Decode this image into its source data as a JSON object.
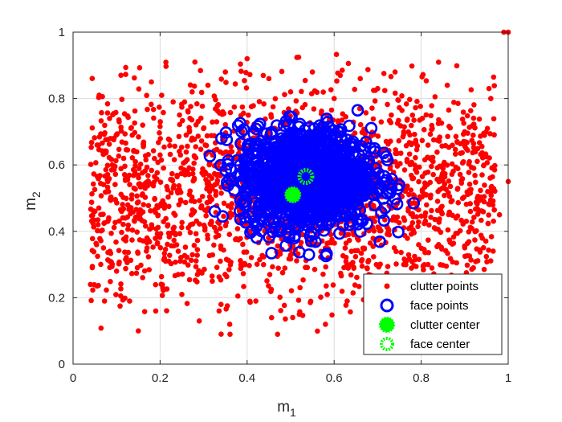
{
  "chart_data": {
    "type": "scatter",
    "title": "",
    "xlabel": "m",
    "xlabel_sub": "1",
    "ylabel": "m",
    "ylabel_sub": "2",
    "xlim": [
      0,
      1
    ],
    "ylim": [
      0,
      1
    ],
    "xticks": [
      "0",
      "0.2",
      "0.4",
      "0.6",
      "0.8",
      "1"
    ],
    "yticks": [
      "0",
      "0.2",
      "0.4",
      "0.6",
      "0.8",
      "1"
    ],
    "grid": true,
    "legend_position": "bottom-right",
    "series": [
      {
        "name": "clutter points",
        "marker": "dot",
        "color": "#ff0000",
        "distribution": "uniform-ish band x≈0.04–1.0, y≈0.09–0.95, avoiding dense center",
        "points": [
          [
            0.04,
            0.24
          ],
          [
            0.05,
            0.46
          ],
          [
            0.06,
            0.81
          ],
          [
            0.07,
            0.35
          ],
          [
            0.08,
            0.55
          ],
          [
            0.09,
            0.6
          ],
          [
            0.1,
            0.28
          ],
          [
            0.11,
            0.87
          ],
          [
            0.12,
            0.44
          ],
          [
            0.13,
            0.19
          ],
          [
            0.14,
            0.53
          ],
          [
            0.15,
            0.1
          ],
          [
            0.16,
            0.72
          ],
          [
            0.17,
            0.38
          ],
          [
            0.18,
            0.85
          ],
          [
            0.19,
            0.16
          ],
          [
            0.2,
            0.63
          ],
          [
            0.21,
            0.47
          ],
          [
            0.22,
            0.31
          ],
          [
            0.23,
            0.79
          ],
          [
            0.24,
            0.52
          ],
          [
            0.25,
            0.21
          ],
          [
            0.26,
            0.69
          ],
          [
            0.27,
            0.42
          ],
          [
            0.28,
            0.91
          ],
          [
            0.29,
            0.13
          ],
          [
            0.3,
            0.57
          ],
          [
            0.31,
            0.84
          ],
          [
            0.32,
            0.25
          ],
          [
            0.33,
            0.73
          ],
          [
            0.34,
            0.18
          ],
          [
            0.35,
            0.88
          ],
          [
            0.36,
            0.12
          ],
          [
            0.4,
            0.92
          ],
          [
            0.42,
            0.19
          ],
          [
            0.45,
            0.86
          ],
          [
            0.47,
            0.09
          ],
          [
            0.5,
            0.82
          ],
          [
            0.52,
            0.15
          ],
          [
            0.55,
            0.88
          ],
          [
            0.58,
            0.12
          ],
          [
            0.6,
            0.8
          ],
          [
            0.63,
            0.19
          ],
          [
            0.66,
            0.86
          ],
          [
            0.68,
            0.27
          ],
          [
            0.7,
            0.83
          ],
          [
            0.72,
            0.21
          ],
          [
            0.74,
            0.88
          ],
          [
            0.76,
            0.3
          ],
          [
            0.78,
            0.75
          ],
          [
            0.8,
            0.15
          ],
          [
            0.82,
            0.62
          ],
          [
            0.84,
            0.36
          ],
          [
            0.86,
            0.84
          ],
          [
            0.88,
            0.44
          ],
          [
            0.9,
            0.7
          ],
          [
            0.92,
            0.29
          ],
          [
            0.94,
            0.57
          ],
          [
            0.96,
            0.8
          ],
          [
            0.98,
            0.45
          ],
          [
            0.99,
            1.0
          ],
          [
            1.0,
            1.0
          ],
          [
            1.0,
            0.55
          ]
        ]
      },
      {
        "name": "face points",
        "marker": "open-circle",
        "color": "#0000ff",
        "distribution": "dense cluster centered near (0.53, 0.56), x≈0.31–0.82, y≈0.30–0.78"
      },
      {
        "name": "clutter center",
        "marker": "filled-circle",
        "color": "#00ff00",
        "points": [
          [
            0.505,
            0.51
          ]
        ]
      },
      {
        "name": "face center",
        "marker": "open-circle",
        "color": "#00ff00",
        "points": [
          [
            0.535,
            0.565
          ]
        ]
      }
    ]
  }
}
